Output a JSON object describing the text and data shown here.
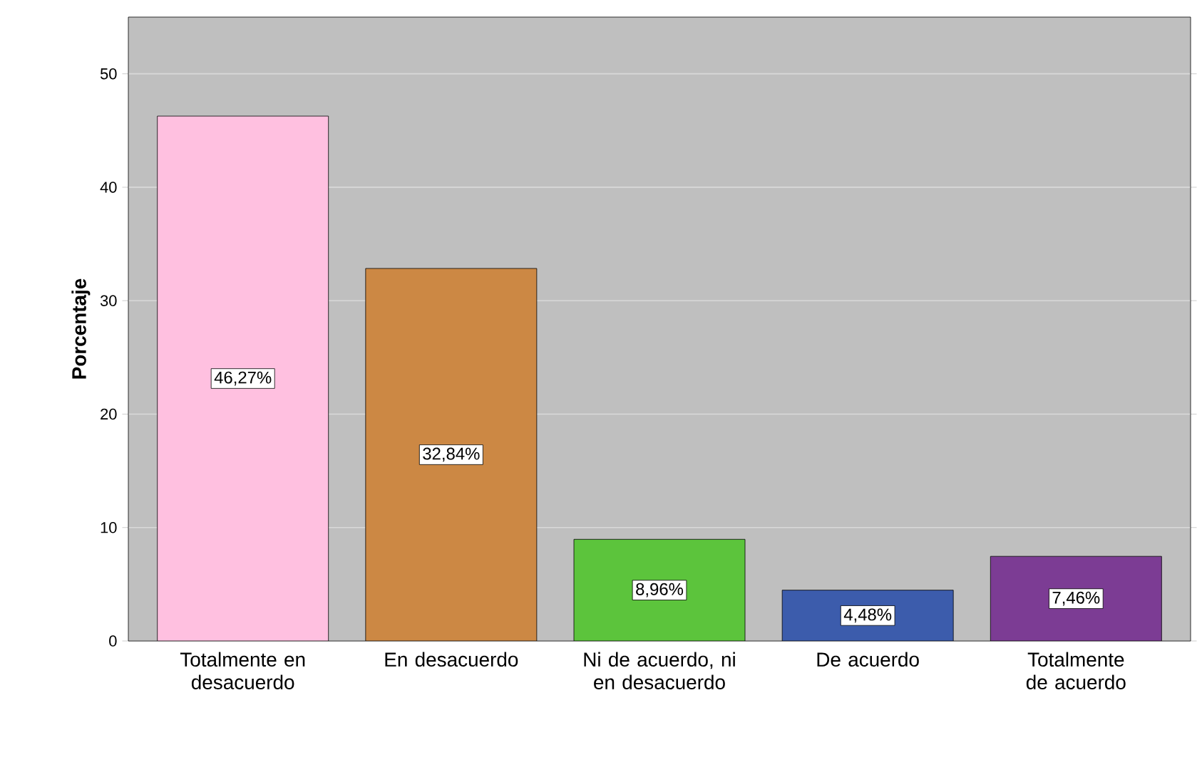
{
  "chart_data": {
    "type": "bar",
    "ylabel": "Porcentaje",
    "categories": [
      "Totalmente en desacuerdo",
      "En desacuerdo",
      "Ni de acuerdo, ni en desacuerdo",
      "De acuerdo",
      "Totalmente de acuerdo"
    ],
    "values": [
      46.27,
      32.84,
      8.96,
      4.48,
      7.46
    ],
    "colors": [
      "#ffc0e0",
      "#cc8844",
      "#5cc43c",
      "#3c5cac",
      "#7c3c94"
    ],
    "value_labels": [
      "46,27%",
      "32,84%",
      "8,96%",
      "4,48%",
      "7,46%"
    ],
    "ylim": [
      0,
      55
    ],
    "yticks": [
      0,
      10,
      20,
      30,
      40,
      50
    ],
    "grid": "y"
  }
}
